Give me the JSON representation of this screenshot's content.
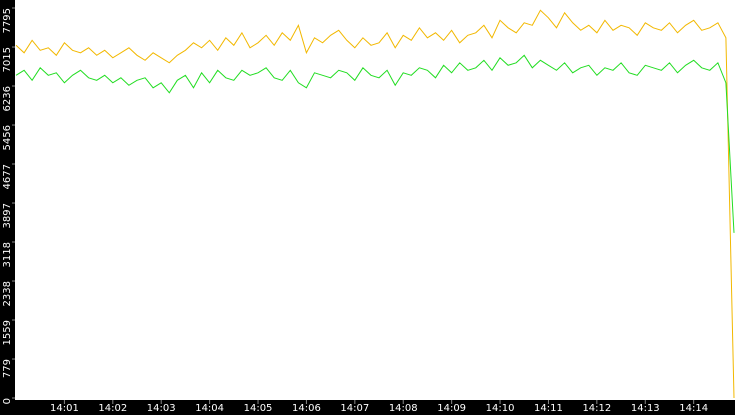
{
  "chart_data": {
    "type": "line",
    "categories": [
      null,
      null,
      null,
      null,
      null,
      null,
      "14:01",
      null,
      null,
      null,
      null,
      null,
      "14:02",
      null,
      null,
      null,
      null,
      null,
      "14:03",
      null,
      null,
      null,
      null,
      null,
      "14:04",
      null,
      null,
      null,
      null,
      null,
      "14:05",
      null,
      null,
      null,
      null,
      null,
      "14:06",
      null,
      null,
      null,
      null,
      null,
      "14:07",
      null,
      null,
      null,
      null,
      null,
      "14:08",
      null,
      null,
      null,
      null,
      null,
      "14:09",
      null,
      null,
      null,
      null,
      null,
      "14:10",
      null,
      null,
      null,
      null,
      null,
      "14:11",
      null,
      null,
      null,
      null,
      null,
      "14:12",
      null,
      null,
      null,
      null,
      null,
      "14:13",
      null,
      null,
      null,
      null,
      null,
      "14:14",
      null,
      null,
      null,
      null,
      null
    ],
    "series": [
      {
        "color": "#f2b800",
        "values": [
          7050,
          6900,
          7150,
          6950,
          7000,
          6850,
          7100,
          6950,
          6900,
          7000,
          6850,
          6950,
          6800,
          6900,
          7000,
          6850,
          6750,
          6900,
          6800,
          6700,
          6850,
          6950,
          7100,
          7000,
          7150,
          6950,
          7200,
          7050,
          7300,
          7000,
          7100,
          7250,
          7050,
          7300,
          7150,
          7450,
          6900,
          7200,
          7100,
          7250,
          7350,
          7150,
          7000,
          7200,
          7050,
          7100,
          7300,
          7000,
          7250,
          7150,
          7400,
          7200,
          7300,
          7150,
          7350,
          7100,
          7250,
          7300,
          7450,
          7200,
          7550,
          7400,
          7300,
          7500,
          7450,
          7750,
          7600,
          7400,
          7700,
          7500,
          7350,
          7450,
          7300,
          7550,
          7350,
          7450,
          7400,
          7250,
          7500,
          7400,
          7350,
          7500,
          7300,
          7450,
          7550,
          7350,
          7400,
          7500,
          7200,
          0
        ]
      },
      {
        "color": "#22dd22",
        "values": [
          6450,
          6550,
          6350,
          6600,
          6450,
          6500,
          6300,
          6450,
          6550,
          6400,
          6350,
          6450,
          6300,
          6400,
          6250,
          6350,
          6400,
          6200,
          6300,
          6100,
          6350,
          6450,
          6200,
          6500,
          6300,
          6550,
          6400,
          6350,
          6550,
          6450,
          6500,
          6600,
          6400,
          6350,
          6550,
          6300,
          6200,
          6500,
          6450,
          6400,
          6550,
          6500,
          6350,
          6600,
          6450,
          6400,
          6550,
          6250,
          6500,
          6450,
          6600,
          6550,
          6400,
          6650,
          6500,
          6700,
          6550,
          6600,
          6750,
          6550,
          6800,
          6650,
          6700,
          6850,
          6600,
          6750,
          6650,
          6550,
          6700,
          6500,
          6600,
          6650,
          6450,
          6600,
          6550,
          6700,
          6500,
          6450,
          6650,
          6600,
          6550,
          6700,
          6500,
          6650,
          6750,
          6600,
          6550,
          6700,
          6300,
          3300
        ]
      }
    ],
    "ylim": [
      0,
      7795
    ],
    "yticks": [
      0,
      779,
      1559,
      2338,
      3118,
      3897,
      4677,
      5456,
      6236,
      7015,
      7795
    ]
  }
}
